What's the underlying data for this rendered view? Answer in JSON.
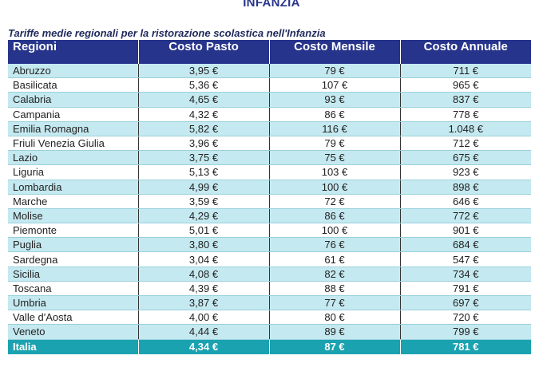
{
  "header": {
    "title": "INFANZIA",
    "caption": "Tariffe medie regionali per la ristorazione scolastica nell'Infanzia"
  },
  "table": {
    "columns": [
      "Regioni",
      "Costo Pasto",
      "Costo Mensile",
      "Costo Annuale"
    ],
    "rows": [
      [
        "Abruzzo",
        "3,95 €",
        "79 €",
        "711 €"
      ],
      [
        "Basilicata",
        "5,36 €",
        "107 €",
        "965 €"
      ],
      [
        "Calabria",
        "4,65 €",
        "93 €",
        "837 €"
      ],
      [
        "Campania",
        "4,32 €",
        "86 €",
        "778 €"
      ],
      [
        "Emilia Romagna",
        "5,82 €",
        "116 €",
        "1.048 €"
      ],
      [
        "Friuli Venezia Giulia",
        "3,96 €",
        "79 €",
        "712 €"
      ],
      [
        "Lazio",
        "3,75 €",
        "75 €",
        "675 €"
      ],
      [
        "Liguria",
        "5,13 €",
        "103 €",
        "923 €"
      ],
      [
        "Lombardia",
        "4,99 €",
        "100 €",
        "898 €"
      ],
      [
        "Marche",
        "3,59 €",
        "72 €",
        "646 €"
      ],
      [
        "Molise",
        "4,29 €",
        "86 €",
        "772 €"
      ],
      [
        "Piemonte",
        "5,01 €",
        "100 €",
        "901 €"
      ],
      [
        "Puglia",
        "3,80 €",
        "76 €",
        "684 €"
      ],
      [
        "Sardegna",
        "3,04 €",
        "61 €",
        "547 €"
      ],
      [
        "Sicilia",
        "4,08 €",
        "82 €",
        "734 €"
      ],
      [
        "Toscana",
        "4,39 €",
        "88 €",
        "791 €"
      ],
      [
        "Umbria",
        "3,87 €",
        "77 €",
        "697 €"
      ],
      [
        "Valle d'Aosta",
        "4,00 €",
        "80 €",
        "720 €"
      ],
      [
        "Veneto",
        "4,44 €",
        "89 €",
        "799 €"
      ]
    ],
    "total": [
      "Italia",
      "4,34 €",
      "87 €",
      "781 €"
    ]
  },
  "colors": {
    "header_bg": "#27348b",
    "row_alt_bg": "#c5e9f0",
    "total_bg": "#1ba2b0"
  }
}
